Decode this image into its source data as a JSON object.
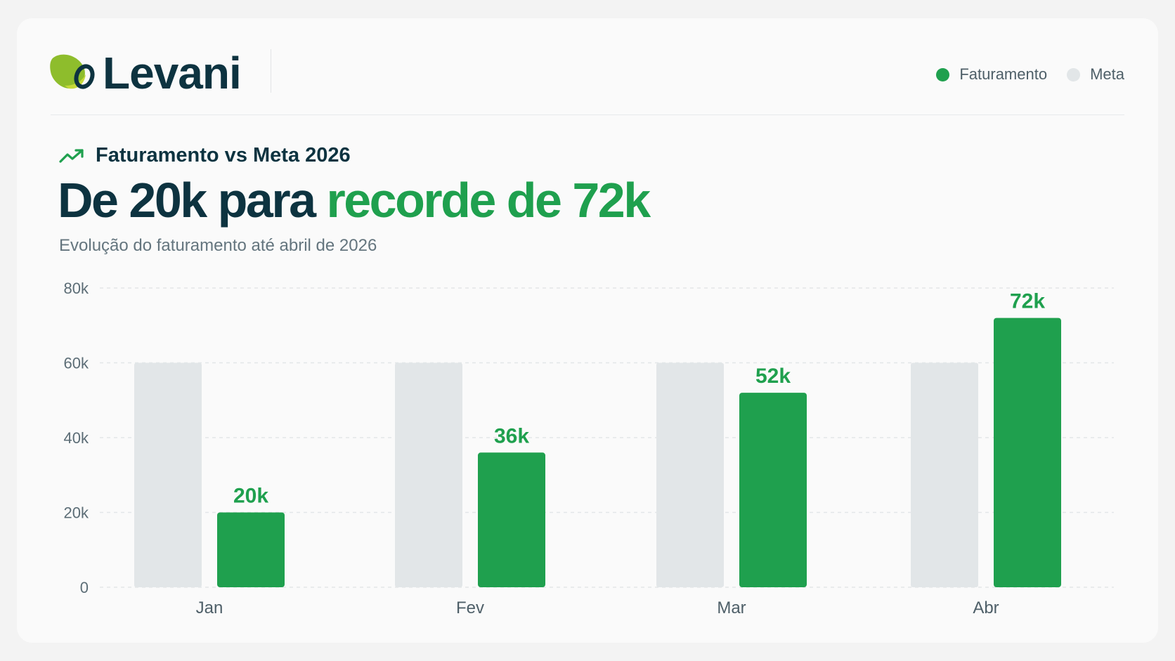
{
  "brand": {
    "name": "Levani"
  },
  "legend": {
    "items": [
      {
        "label": "Faturamento",
        "color": "#1fa04e"
      },
      {
        "label": "Meta",
        "color": "#e2e6e8"
      }
    ]
  },
  "header": {
    "kicker": "Faturamento vs Meta 2026",
    "kicker_icon": "trending-up-icon",
    "headline_plain": "De 20k para ",
    "headline_highlight": "recorde de 72k",
    "subtitle": "Evolução do faturamento até abril de 2026"
  },
  "chart_data": {
    "type": "bar",
    "categories": [
      "Jan",
      "Fev",
      "Mar",
      "Abr"
    ],
    "series": [
      {
        "name": "Meta",
        "values": [
          60,
          60,
          60,
          60
        ],
        "color": "#e2e6e8"
      },
      {
        "name": "Faturamento",
        "values": [
          20,
          36,
          52,
          72
        ],
        "color": "#1fa04e"
      }
    ],
    "data_labels": [
      "20k",
      "36k",
      "52k",
      "72k"
    ],
    "y_ticks": [
      0,
      20,
      40,
      60,
      80
    ],
    "y_tick_labels": [
      "0",
      "20k",
      "40k",
      "60k",
      "80k"
    ],
    "ylim": [
      0,
      80
    ],
    "grid": true,
    "legend_position": "top-right"
  },
  "colors": {
    "accent": "#1fa04e",
    "text_dark": "#0d3340",
    "text_muted": "#64757e"
  }
}
